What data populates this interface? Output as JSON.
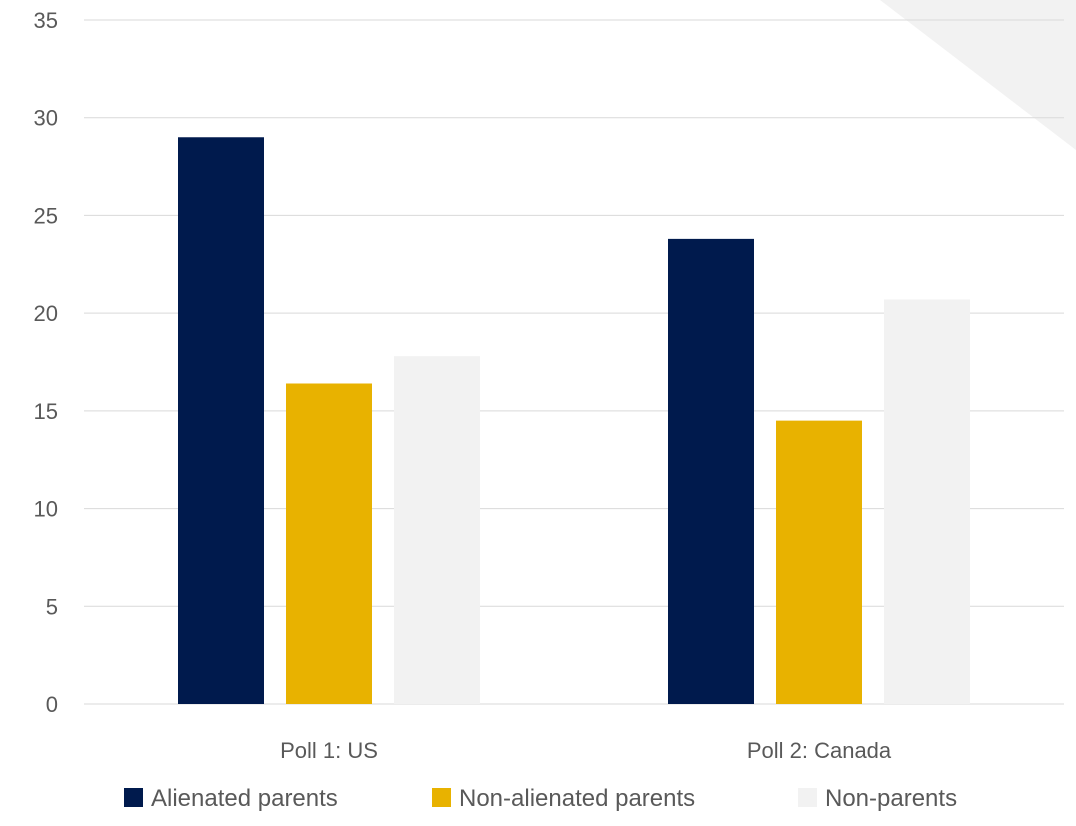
{
  "chart_data": {
    "type": "bar",
    "title": "",
    "xlabel": "",
    "ylabel": "",
    "categories": [
      "Poll 1: US",
      "Poll 2: Canada"
    ],
    "series": [
      {
        "name": "Alienated parents",
        "color": "#001a4d",
        "values": [
          29.0,
          23.8
        ]
      },
      {
        "name": "Non-alienated parents",
        "color": "#e8b200",
        "values": [
          16.4,
          14.5
        ]
      },
      {
        "name": "Non-parents",
        "color": "#f2f2f2",
        "values": [
          17.8,
          20.7
        ]
      }
    ],
    "ylim": [
      0,
      35
    ],
    "yticks": [
      0,
      5,
      10,
      15,
      20,
      25,
      30,
      35
    ],
    "grid": true,
    "legend_position": "bottom",
    "decoration_color": "#f2f2f2"
  }
}
